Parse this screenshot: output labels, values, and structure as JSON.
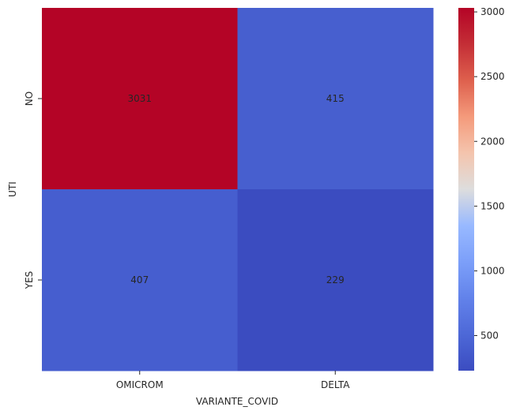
{
  "chart_data": {
    "type": "heatmap",
    "title": "",
    "xlabel": "VARIANTE_COVID",
    "ylabel": "UTI",
    "x_categories": [
      "OMICROM",
      "DELTA"
    ],
    "y_categories": [
      "NO",
      "YES"
    ],
    "values": [
      [
        3031,
        415
      ],
      [
        407,
        229
      ]
    ],
    "colormap": "coolwarm",
    "colorbar": {
      "min": 229,
      "max": 3031,
      "ticks": [
        500,
        1000,
        1500,
        2000,
        2500,
        3000
      ]
    },
    "annotations": true,
    "grid": false
  }
}
